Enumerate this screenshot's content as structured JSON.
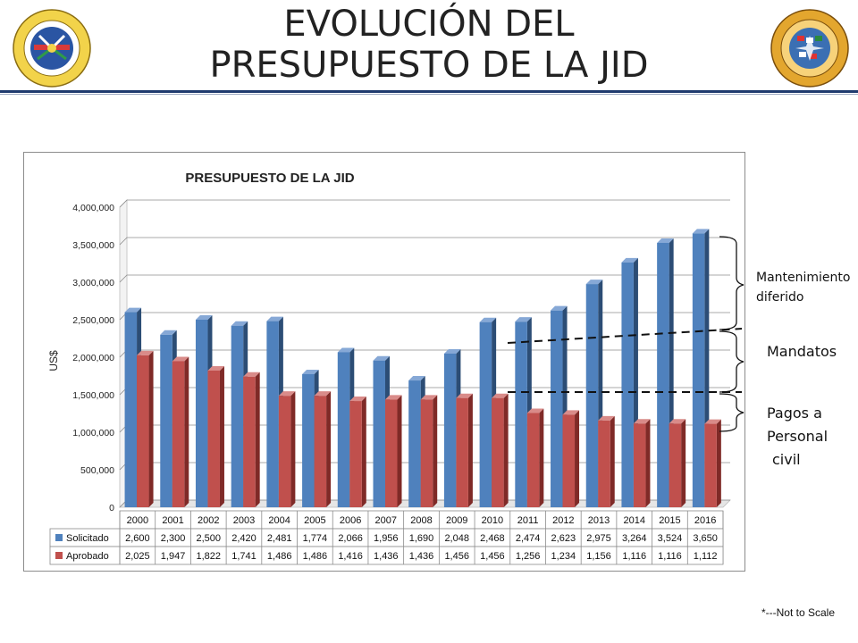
{
  "slide": {
    "title_line1": "EVOLUCIÓN DEL",
    "title_line2": "PRESUPUESTO DE LA JID",
    "footnote": "*---Not to Scale"
  },
  "seals": {
    "left_icon": "oas-seal-icon",
    "right_icon": "jid-seal-icon"
  },
  "annotations": {
    "mantenimiento": [
      "Mantenimiento",
      "diferido"
    ],
    "mandatos": "Mandatos",
    "pagos": [
      "Pagos a",
      "Personal",
      "civil"
    ]
  },
  "colors": {
    "solicitado": "#4f81bd",
    "aprobado": "#c0504d"
  },
  "chart_data": {
    "type": "bar",
    "title": "PRESUPUESTO DE LA JID",
    "ylabel": "US$",
    "xlabel": "",
    "ylim": [
      0,
      4000000
    ],
    "yticks": [
      "0",
      "500,000",
      "1,000,000",
      "1,500,000",
      "2,000,000",
      "2,500,000",
      "3,000,000",
      "3,500,000",
      "4,000,000"
    ],
    "categories": [
      "2000",
      "2001",
      "2002",
      "2003",
      "2004",
      "2005",
      "2006",
      "2007",
      "2008",
      "2009",
      "2010",
      "2011",
      "2012",
      "2013",
      "2014",
      "2015",
      "2016"
    ],
    "series": [
      {
        "name": "Solicitado",
        "values": [
          2600000,
          2300000,
          2500000,
          2420000,
          2481000,
          1774000,
          2066000,
          1956000,
          1690000,
          2048000,
          2468000,
          2474000,
          2623000,
          2975000,
          3264000,
          3524000,
          3650000
        ],
        "table": [
          "2,600",
          "2,300",
          "2,500",
          "2,420",
          "2,481",
          "1,774",
          "2,066",
          "1,956",
          "1,690",
          "2,048",
          "2,468",
          "2,474",
          "2,623",
          "2,975",
          "3,264",
          "3,524",
          "3,650"
        ]
      },
      {
        "name": "Aprobado",
        "values": [
          2025000,
          1947000,
          1822000,
          1741000,
          1486000,
          1486000,
          1416000,
          1436000,
          1436000,
          1456000,
          1456000,
          1256000,
          1234000,
          1156000,
          1116000,
          1116000,
          1112000
        ],
        "table": [
          "2,025",
          "1,947",
          "1,822",
          "1,741",
          "1,486",
          "1,486",
          "1,416",
          "1,436",
          "1,436",
          "1,456",
          "1,456",
          "1,256",
          "1,234",
          "1,156",
          "1,116",
          "1,116",
          "1,112"
        ]
      }
    ],
    "grid": true,
    "legend": "data-table"
  }
}
